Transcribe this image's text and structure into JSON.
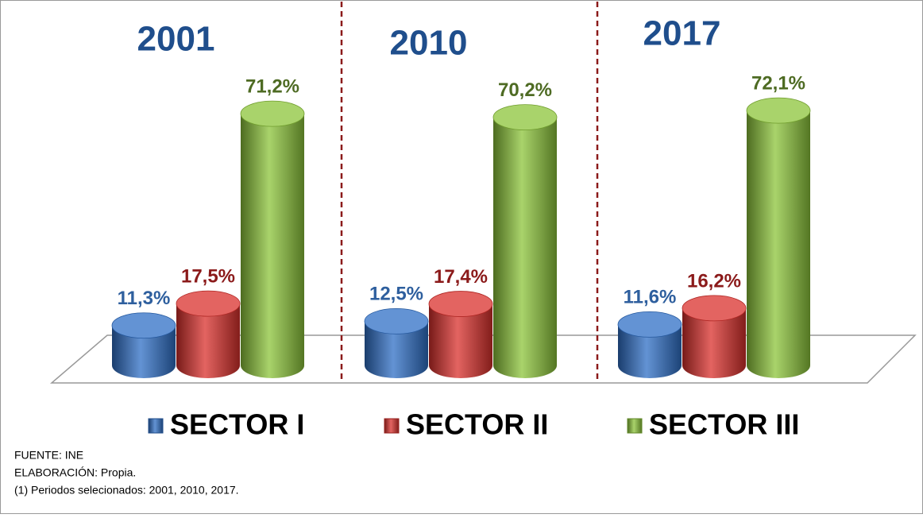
{
  "chart_data": {
    "type": "bar",
    "categories": [
      "2001",
      "2010",
      "2017"
    ],
    "series": [
      {
        "name": "SECTOR I",
        "color": "#2f6fc6",
        "values": [
          11.3,
          12.5,
          11.6
        ],
        "value_labels": [
          "11,3%",
          "12,5%",
          "11,6%"
        ]
      },
      {
        "name": "SECTOR II",
        "color": "#d9302c",
        "values": [
          17.5,
          17.4,
          16.2
        ],
        "value_labels": [
          "17,5%",
          "17,4%",
          "16,2%"
        ]
      },
      {
        "name": "SECTOR III",
        "color": "#8cc43a",
        "values": [
          71.2,
          70.2,
          72.1
        ],
        "value_labels": [
          "71,2%",
          "70,2%",
          "72,1%"
        ]
      }
    ],
    "notes": [
      "FUENTE: INE",
      "ELABORACIÓN: Propia.",
      "(1) Periodos selecionados: 2001, 2010, 2017."
    ]
  }
}
